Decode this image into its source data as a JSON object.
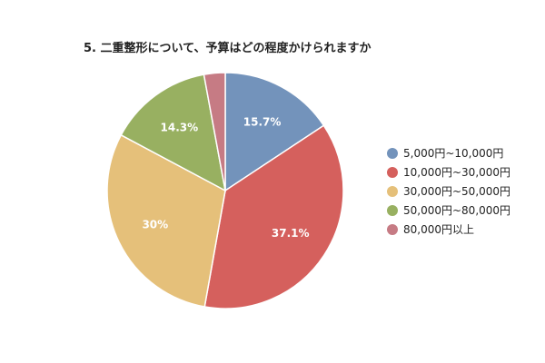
{
  "chart_data": {
    "type": "pie",
    "title": "5. 二重整形について、予算はどの程度かけられますか",
    "categories": [
      "5,000円~10,000円",
      "10,000円~30,000円",
      "30,000円~50,000円",
      "50,000円~80,000円",
      "80,000円以上"
    ],
    "values": [
      15.7,
      37.1,
      30,
      14.3,
      2.9
    ],
    "data_labels": [
      "15.7%",
      "37.1%",
      "30%",
      "14.3%",
      ""
    ],
    "colors": [
      "#7393bb",
      "#d5605d",
      "#e5c07a",
      "#98b061",
      "#c67b84"
    ],
    "legend_position": "right"
  }
}
